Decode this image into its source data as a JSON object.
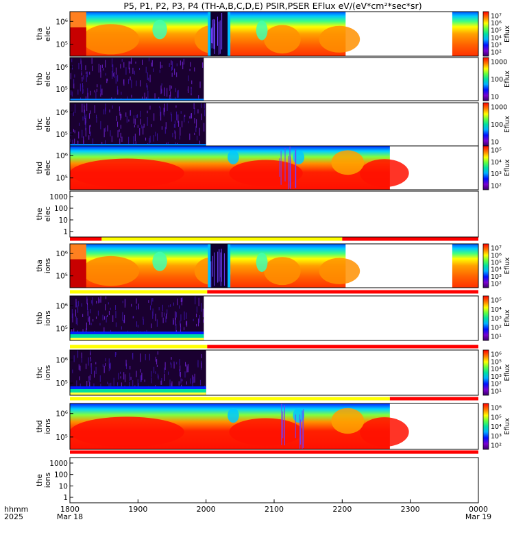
{
  "title": "P5, P1, P2, P3, P4 (TH-A,B,C,D,E) PSIR,PSER EFlux eV/(eV*cm²*sec*sr)",
  "time_axis": {
    "ticks": [
      "1800",
      "1900",
      "2000",
      "2100",
      "2200",
      "2300",
      "0000"
    ],
    "row_label_1": "hhmm",
    "row_label_2": "2025",
    "start_date": "Mar 18",
    "end_date": "Mar 19"
  },
  "colorbar_label": "Eflux",
  "colors": {
    "flag_yellow": "#ffff00",
    "flag_red": "#ff0000",
    "axis": "#000000"
  },
  "chart_data": {
    "type": "heatmap",
    "x_range": [
      "1800",
      "0000"
    ],
    "panels": [
      {
        "id": "tha-elec",
        "probe": "tha",
        "species": "elec",
        "kind": "spectrogram",
        "yticks": [
          "10⁵",
          "10⁶"
        ],
        "cbar_ticks": [
          "10²",
          "10³",
          "10⁴",
          "10⁵",
          "10⁶",
          "10⁷"
        ],
        "data_extent": [
          [
            "1800",
            "2203"
          ],
          [
            "2337",
            "0000"
          ]
        ],
        "dropout": [
          "2004",
          "2019"
        ]
      },
      {
        "id": "thb-elec",
        "probe": "thb",
        "species": "elec",
        "kind": "noise",
        "yticks": [
          "10⁵",
          "10⁶"
        ],
        "cbar_ticks": [
          "10",
          "100",
          "1000"
        ],
        "data_extent": [
          [
            "1800",
            "1958"
          ]
        ]
      },
      {
        "id": "thc-elec",
        "probe": "thc",
        "species": "elec",
        "kind": "noise",
        "yticks": [
          "10⁵",
          "10⁶"
        ],
        "cbar_ticks": [
          "10",
          "100",
          "1000"
        ],
        "data_extent": [
          [
            "1800",
            "2000"
          ]
        ]
      },
      {
        "id": "thd-elec",
        "probe": "thd",
        "species": "elec",
        "kind": "spectrogram",
        "yticks": [
          "10⁵",
          "10⁶"
        ],
        "cbar_ticks": [
          "10²",
          "10³",
          "10⁴",
          "10⁵"
        ],
        "data_extent": [
          [
            "1800",
            "2242"
          ]
        ],
        "dropout": [
          "2087",
          "2103"
        ]
      },
      {
        "id": "the-elec",
        "probe": "the",
        "species": "elec",
        "kind": "empty",
        "yticks": [
          "1",
          "10",
          "100",
          "1000"
        ],
        "cbar_ticks": []
      },
      {
        "id": "tha-ions",
        "probe": "tha",
        "species": "ions",
        "kind": "spectrogram",
        "yticks": [
          "10⁵",
          "10⁶"
        ],
        "cbar_ticks": [
          "10²",
          "10³",
          "10⁴",
          "10⁵",
          "10⁶",
          "10⁷"
        ],
        "data_extent": [
          [
            "1800",
            "2203"
          ],
          [
            "2337",
            "0000"
          ]
        ],
        "dropout": [
          "2004",
          "2019"
        ]
      },
      {
        "id": "thb-ions",
        "probe": "thb",
        "species": "ions",
        "kind": "noise",
        "yticks": [
          "10⁵",
          "10⁶"
        ],
        "cbar_ticks": [
          "10¹",
          "10²",
          "10³",
          "10⁴",
          "10⁵"
        ],
        "data_extent": [
          [
            "1800",
            "1958"
          ]
        ]
      },
      {
        "id": "thc-ions",
        "probe": "thc",
        "species": "ions",
        "kind": "noise",
        "yticks": [
          "10⁵",
          "10⁶"
        ],
        "cbar_ticks": [
          "10¹",
          "10²",
          "10³",
          "10⁴",
          "10⁵",
          "10⁶"
        ],
        "data_extent": [
          [
            "1800",
            "2000"
          ]
        ]
      },
      {
        "id": "thd-ions",
        "probe": "thd",
        "species": "ions",
        "kind": "spectrogram",
        "yticks": [
          "10⁵",
          "10⁶"
        ],
        "cbar_ticks": [
          "10²",
          "10³",
          "10⁴",
          "10⁵",
          "10⁶"
        ],
        "data_extent": [
          [
            "1800",
            "2242"
          ]
        ],
        "dropout": [
          "2087",
          "2103"
        ]
      },
      {
        "id": "the-ions",
        "probe": "the",
        "species": "ions",
        "kind": "empty",
        "yticks": [
          "1",
          "10",
          "100",
          "1000"
        ],
        "cbar_ticks": []
      }
    ],
    "flag_bars": [
      {
        "after_panel": "the-elec",
        "segments": [
          [
            "1800",
            "1828",
            "red"
          ],
          [
            "1828",
            "2200",
            "yellow"
          ],
          [
            "2200",
            "0000",
            "red"
          ]
        ]
      },
      {
        "after_panel": "tha-ions",
        "segments": [
          [
            "1800",
            "2001",
            "yellow"
          ],
          [
            "2001",
            "0000",
            "red"
          ]
        ]
      },
      {
        "after_panel": "thb-ions",
        "segments": [
          [
            "1800",
            "2001",
            "yellow"
          ],
          [
            "2001",
            "0000",
            "red"
          ]
        ]
      },
      {
        "after_panel": "thc-ions",
        "segments": [
          [
            "1800",
            "2242",
            "yellow"
          ],
          [
            "2242",
            "0000",
            "red"
          ]
        ]
      },
      {
        "after_panel": "thd-ions",
        "segments": [
          [
            "1800",
            "0000",
            "red"
          ]
        ]
      }
    ]
  }
}
